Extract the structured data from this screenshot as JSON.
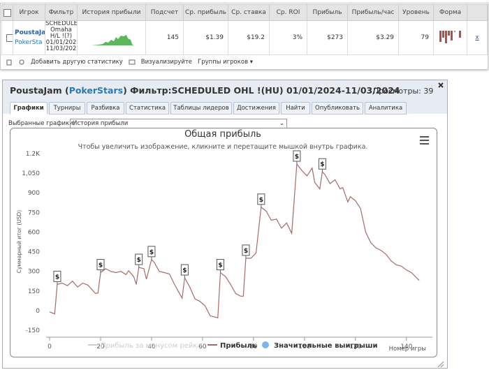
{
  "table": {
    "headers": [
      "Игрок",
      "Фильтр",
      "История прибыли",
      "Подсчет",
      "Ср. прибыль",
      "Ср. ставка",
      "Ср. ROI",
      "Прибыль",
      "Прибыль/час",
      "Уровень",
      "Форма"
    ],
    "row": {
      "player": "PoustaJa",
      "site": "PokerSta",
      "filter": [
        "SCHEDULED",
        "Omaha",
        "H/L !(?)",
        "01/01/202",
        "11/03/202"
      ],
      "count": "145",
      "avg_profit": "$1.39",
      "avg_stake": "$19.2",
      "avg_roi": "3%",
      "profit": "$273",
      "profit_hour": "$3.29",
      "level": "79",
      "remove": "x"
    }
  },
  "toolbar": {
    "add_stat": "Добавить другую статистику",
    "visualize": "Визуализируйте",
    "groups": "Группы игроков ▾"
  },
  "panel": {
    "title_parts": [
      "PoustaJam (",
      "PokerStars",
      ") Фильтр:SCHEDULED OHL !(HU) 01/01/2024-11/03/2024"
    ],
    "views": "Просмотры: 39",
    "tabs": [
      "Графики",
      "Турниры",
      "Разбивка",
      "Статистика",
      "Таблицы лидеров",
      "Достижения",
      "Найти",
      "Опубликовать",
      "Аналитика"
    ],
    "select_label": "Выбранные графики:",
    "select_value": "История прибыли"
  },
  "chart_data": {
    "type": "line",
    "title": "Общая прибыль",
    "subtitle": "Чтобы увеличить изображение, кликните и перетащите мышкой внутрь графика.",
    "ylabel": "Суммарный итог (USD)",
    "xlabel": "Номер игры",
    "xlim": [
      0,
      148
    ],
    "ylim": [
      -150,
      1200
    ],
    "xticks": [
      0,
      20,
      40,
      60,
      80,
      100,
      120,
      140
    ],
    "yticks": [
      -150,
      0,
      150,
      300,
      450,
      600,
      750,
      900,
      {
        "value": 1050,
        "label": "1,050"
      },
      {
        "value": 1200,
        "label": "1.2K"
      }
    ],
    "series": [
      {
        "name": "Прибыль за минусом рейка",
        "color": "#cccccc",
        "visible": false
      },
      {
        "name": "Прибыль",
        "color": "#a86a6a",
        "x": [
          0,
          2,
          3,
          5,
          7,
          9,
          11,
          13,
          15,
          18,
          19,
          20,
          22,
          24,
          26,
          28,
          30,
          31,
          33,
          34,
          35,
          37,
          38,
          40,
          41,
          43,
          45,
          47,
          49,
          52,
          53,
          55,
          57,
          59,
          61,
          63,
          66,
          67,
          69,
          71,
          73,
          75,
          76,
          77,
          79,
          81,
          83,
          85,
          87,
          89,
          91,
          93,
          95,
          97,
          99,
          101,
          103,
          104,
          106,
          107,
          108,
          110,
          112,
          114,
          115,
          117,
          118,
          120,
          122,
          124,
          126,
          128,
          130,
          132,
          134,
          136,
          138,
          140,
          142,
          145
        ],
        "values": [
          -10,
          -25,
          200,
          210,
          190,
          225,
          180,
          210,
          195,
          130,
          135,
          290,
          320,
          300,
          290,
          300,
          275,
          305,
          260,
          200,
          330,
          320,
          240,
          390,
          370,
          300,
          290,
          280,
          200,
          95,
          250,
          180,
          90,
          70,
          35,
          -40,
          -55,
          290,
          260,
          200,
          130,
          110,
          110,
          400,
          400,
          440,
          790,
          760,
          690,
          700,
          630,
          670,
          590,
          1120,
          1070,
          1030,
          1090,
          980,
          930,
          1060,
          1040,
          970,
          1000,
          930,
          940,
          830,
          870,
          840,
          780,
          600,
          520,
          480,
          460,
          430,
          380,
          350,
          340,
          310,
          290,
          230
        ]
      },
      {
        "name": "Значительные выигрыши",
        "color": "#7cb5ec",
        "marker_label": "$",
        "x": [
          3,
          20,
          35,
          40,
          53,
          67,
          77,
          83,
          97,
          107
        ],
        "values": [
          200,
          290,
          330,
          390,
          250,
          290,
          400,
          790,
          1120,
          1060
        ]
      }
    ]
  }
}
